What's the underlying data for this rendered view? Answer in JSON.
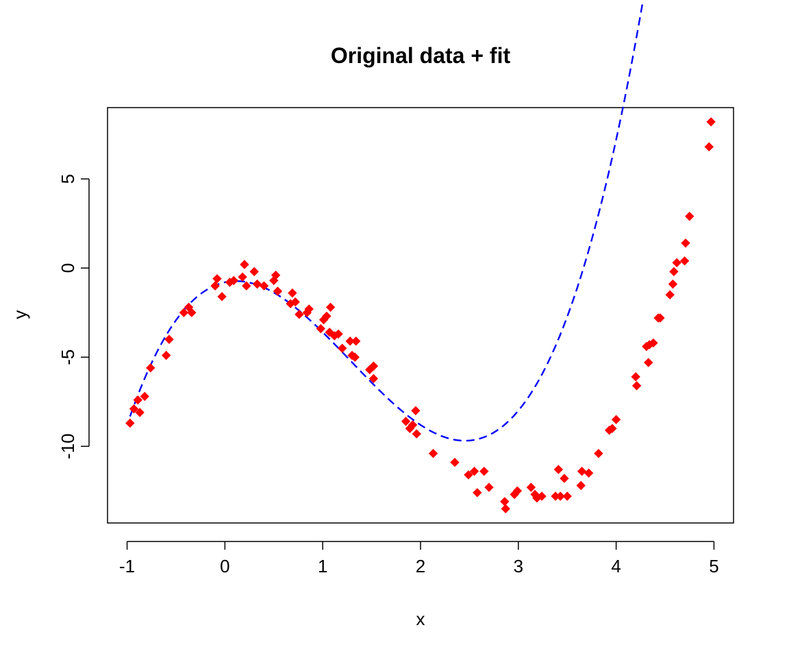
{
  "chart_data": {
    "type": "scatter",
    "title": "Original data + fit",
    "xlabel": "x",
    "ylabel": "y",
    "xlim": [
      -1.2,
      5.2
    ],
    "ylim": [
      -14.3,
      9.0
    ],
    "x_ticks": [
      -1,
      0,
      1,
      2,
      3,
      4,
      5
    ],
    "x_tick_labels": [
      "-1",
      "0",
      "1",
      "2",
      "3",
      "4",
      "5"
    ],
    "y_ticks": [
      -10,
      -5,
      0,
      5
    ],
    "y_tick_labels": [
      "-10",
      "-5",
      "0",
      "5"
    ],
    "grid": false,
    "legend": "none",
    "points_color": "#ff0000",
    "fit_color": "#0000ff",
    "points": [
      [
        -0.97,
        -8.7
      ],
      [
        -0.93,
        -7.9
      ],
      [
        -0.89,
        -7.4
      ],
      [
        -0.87,
        -8.1
      ],
      [
        -0.82,
        -7.2
      ],
      [
        -0.76,
        -5.6
      ],
      [
        -0.6,
        -4.9
      ],
      [
        -0.57,
        -4.0
      ],
      [
        -0.42,
        -2.5
      ],
      [
        -0.37,
        -2.2
      ],
      [
        -0.34,
        -2.5
      ],
      [
        -0.1,
        -1.0
      ],
      [
        -0.08,
        -0.6
      ],
      [
        -0.03,
        -1.6
      ],
      [
        0.05,
        -0.8
      ],
      [
        0.09,
        -0.7
      ],
      [
        0.18,
        -0.5
      ],
      [
        0.2,
        0.2
      ],
      [
        0.22,
        -1.0
      ],
      [
        0.3,
        -0.2
      ],
      [
        0.33,
        -0.9
      ],
      [
        0.4,
        -1.0
      ],
      [
        0.5,
        -0.7
      ],
      [
        0.52,
        -0.4
      ],
      [
        0.54,
        -1.3
      ],
      [
        0.67,
        -2.0
      ],
      [
        0.69,
        -1.4
      ],
      [
        0.72,
        -1.9
      ],
      [
        0.76,
        -2.6
      ],
      [
        0.84,
        -2.5
      ],
      [
        0.86,
        -2.3
      ],
      [
        0.98,
        -3.4
      ],
      [
        1.01,
        -2.9
      ],
      [
        1.04,
        -2.7
      ],
      [
        1.07,
        -3.6
      ],
      [
        1.08,
        -2.2
      ],
      [
        1.12,
        -3.8
      ],
      [
        1.16,
        -3.7
      ],
      [
        1.2,
        -4.5
      ],
      [
        1.28,
        -4.1
      ],
      [
        1.3,
        -4.9
      ],
      [
        1.33,
        -5.0
      ],
      [
        1.34,
        -4.1
      ],
      [
        1.48,
        -5.7
      ],
      [
        1.52,
        -5.5
      ],
      [
        1.52,
        -6.2
      ],
      [
        1.85,
        -8.6
      ],
      [
        1.89,
        -9.0
      ],
      [
        1.92,
        -8.8
      ],
      [
        1.95,
        -8.0
      ],
      [
        1.96,
        -9.3
      ],
      [
        2.13,
        -10.4
      ],
      [
        2.35,
        -10.9
      ],
      [
        2.49,
        -11.6
      ],
      [
        2.55,
        -11.4
      ],
      [
        2.58,
        -12.6
      ],
      [
        2.65,
        -11.4
      ],
      [
        2.7,
        -12.3
      ],
      [
        2.86,
        -13.1
      ],
      [
        2.87,
        -13.5
      ],
      [
        2.96,
        -12.7
      ],
      [
        2.99,
        -12.5
      ],
      [
        3.13,
        -12.3
      ],
      [
        3.17,
        -12.7
      ],
      [
        3.19,
        -12.9
      ],
      [
        3.24,
        -12.8
      ],
      [
        3.38,
        -12.8
      ],
      [
        3.41,
        -11.3
      ],
      [
        3.43,
        -12.8
      ],
      [
        3.47,
        -11.8
      ],
      [
        3.5,
        -12.8
      ],
      [
        3.64,
        -12.2
      ],
      [
        3.65,
        -11.4
      ],
      [
        3.72,
        -11.5
      ],
      [
        3.82,
        -10.4
      ],
      [
        3.93,
        -9.1
      ],
      [
        3.96,
        -9.0
      ],
      [
        4.0,
        -8.5
      ],
      [
        4.2,
        -6.1
      ],
      [
        4.21,
        -6.6
      ],
      [
        4.31,
        -4.4
      ],
      [
        4.33,
        -5.3
      ],
      [
        4.34,
        -4.3
      ],
      [
        4.38,
        -4.2
      ],
      [
        4.43,
        -2.8
      ],
      [
        4.45,
        -2.8
      ],
      [
        4.55,
        -1.5
      ],
      [
        4.58,
        -0.9
      ],
      [
        4.59,
        -0.2
      ],
      [
        4.62,
        0.3
      ],
      [
        4.7,
        0.4
      ],
      [
        4.71,
        1.4
      ],
      [
        4.75,
        2.9
      ],
      [
        4.95,
        6.8
      ],
      [
        4.97,
        8.2
      ]
    ],
    "fit_curve": {
      "type": "cubic",
      "coefficients": [
        -0.8,
        1.2,
        -5.4,
        1.4
      ],
      "x_range": [
        -0.97,
        4.97
      ]
    }
  }
}
